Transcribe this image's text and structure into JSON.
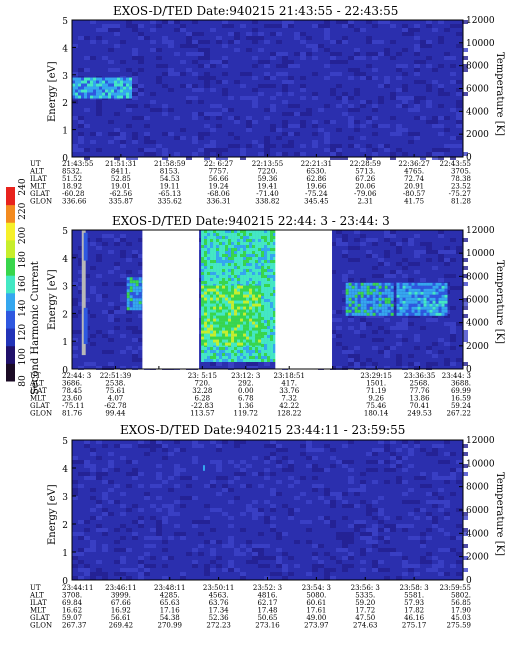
{
  "colors": {
    "panel_bg": "#2b2fae",
    "noise_dark": "#231f8f",
    "noise_light": "#3d44c9",
    "frame": "#000000",
    "colorbar": [
      "#1a0a24",
      "#20106a",
      "#2233b8",
      "#2f58e0",
      "#35a7ef",
      "#44e8c4",
      "#38d64c",
      "#c7ee2c",
      "#f6f02a",
      "#f38b1f",
      "#e8231d"
    ]
  },
  "colorbar": {
    "label": "Second Harmonic Current",
    "ticks": [
      "80",
      "100",
      "120",
      "140",
      "160",
      "180",
      "200",
      "220",
      "240"
    ]
  },
  "chart_data": [
    {
      "type": "heatmap",
      "title": "EXOS-D/TED  Date:940215  21:43:55 - 22:43:55",
      "ylabel": "Energy [eV]",
      "ylabel_right": "Temperature [K]",
      "ylim": [
        0,
        5
      ],
      "ylim_right": [
        0,
        12000
      ],
      "yticks": [
        "0",
        "1",
        "2",
        "3",
        "4",
        "5"
      ],
      "yticks_right": [
        "0",
        "2000",
        "4000",
        "6000",
        "8000",
        "10000",
        "12000"
      ],
      "grid": false,
      "data_gaps": [],
      "features": [
        {
          "kind": "enhanced_band",
          "x_from": 0.0,
          "x_to": 0.15,
          "y_from": 2.2,
          "y_to": 2.9,
          "level": 140
        }
      ],
      "ephemeris_rows": [
        {
          "label": "UT",
          "values": [
            "21:43:55",
            "21:51:31",
            "21:58:59",
            "22: 6:27",
            "22:13:55",
            "22:21:31",
            "22:28:59",
            "22:36:27",
            "22:43:55"
          ]
        },
        {
          "label": "ALT",
          "values": [
            "8532.",
            "8411.",
            "8153.",
            "7757.",
            "7220.",
            "6530.",
            "5713.",
            "4765.",
            "3705."
          ]
        },
        {
          "label": "ILAT",
          "values": [
            "51.52",
            "52.85",
            "54.53",
            "56.66",
            "59.36",
            "62.86",
            "67.26",
            "72.74",
            "78.38"
          ]
        },
        {
          "label": "MLT",
          "values": [
            "18.92",
            "19.01",
            "19.11",
            "19.24",
            "19.41",
            "19.66",
            "20.06",
            "20.91",
            "23.52"
          ]
        },
        {
          "label": "GLAT",
          "values": [
            "-60.28",
            "-62.56",
            "-65.13",
            "-68.06",
            "-71.40",
            "-75.24",
            "-79.06",
            "-80.57",
            "-75.27"
          ]
        },
        {
          "label": "GLON",
          "values": [
            "336.66",
            "335.87",
            "335.62",
            "336.31",
            "338.82",
            "345.45",
            "2.31",
            "41.75",
            "81.28"
          ]
        }
      ]
    },
    {
      "type": "heatmap",
      "title": "EXOS-D/TED   Date:940215  22:44: 3 - 23:44: 3",
      "ylabel": "Energy [eV]",
      "ylabel_right": "Temperature [K]",
      "ylim": [
        0,
        5
      ],
      "ylim_right": [
        0,
        12000
      ],
      "yticks": [
        "0",
        "1",
        "2",
        "3",
        "4",
        "5"
      ],
      "yticks_right": [
        "0",
        "2000",
        "4000",
        "6000",
        "8000",
        "10000",
        "12000"
      ],
      "grid": false,
      "data_gaps": [
        [
          0.18,
          0.325
        ],
        [
          0.52,
          0.665
        ]
      ],
      "features": [
        {
          "kind": "vertical_stripe",
          "x_from": 0.025,
          "x_to": 0.035,
          "y_from": 0.5,
          "y_to": 5.0,
          "level": 80
        },
        {
          "kind": "vertical_stripe",
          "x_from": 0.03,
          "x_to": 0.04,
          "y_from": 3.9,
          "y_to": 4.9,
          "level": 120
        },
        {
          "kind": "vertical_stripe",
          "x_from": 0.03,
          "x_to": 0.04,
          "y_from": 0.9,
          "y_to": 2.2,
          "level": 120
        },
        {
          "kind": "enhanced_band",
          "x_from": 0.14,
          "x_to": 0.18,
          "y_from": 2.2,
          "y_to": 3.3,
          "level": 150
        },
        {
          "kind": "enhanced_region",
          "x_from": 0.33,
          "x_to": 0.52,
          "y_from": 0.3,
          "y_to": 5.0,
          "level": 160
        },
        {
          "kind": "enhanced_region",
          "x_from": 0.33,
          "x_to": 0.48,
          "y_from": 0.9,
          "y_to": 3.0,
          "level": 175
        },
        {
          "kind": "enhanced_band",
          "x_from": 0.7,
          "x_to": 0.82,
          "y_from": 2.0,
          "y_to": 3.1,
          "level": 150
        },
        {
          "kind": "enhanced_band",
          "x_from": 0.83,
          "x_to": 0.96,
          "y_from": 2.0,
          "y_to": 3.1,
          "level": 145
        }
      ],
      "ephemeris_rows": [
        {
          "label": "UT",
          "values": [
            "22:44: 3",
            "22:51:39",
            "",
            "23: 5:15",
            "23:12: 3",
            "23:18:51",
            "",
            "23:29:15",
            "23:36:35",
            "23:44: 3"
          ]
        },
        {
          "label": "ALT",
          "values": [
            "3686.",
            "2538.",
            "",
            "720.",
            "292.",
            "417.",
            "",
            "1501.",
            "2568.",
            "3688."
          ]
        },
        {
          "label": "ILAT",
          "values": [
            "78.45",
            "75.61",
            "",
            "32.28",
            "0.00",
            "33.76",
            "",
            "71.19",
            "77.76",
            "69.99"
          ]
        },
        {
          "label": "MLT",
          "values": [
            "23.60",
            "4.07",
            "",
            "6.28",
            "6.78",
            "7.32",
            "",
            "9.26",
            "13.86",
            "16.59"
          ]
        },
        {
          "label": "GLAT",
          "values": [
            "-75.11",
            "-62.78",
            "",
            "-22.83",
            "1.36",
            "42.22",
            "",
            "75.46",
            "70.41",
            "59.24"
          ]
        },
        {
          "label": "GLON",
          "values": [
            "81.76",
            "99.44",
            "",
            "113.57",
            "119.72",
            "128.22",
            "",
            "180.14",
            "249.53",
            "267.22"
          ]
        }
      ]
    },
    {
      "type": "heatmap",
      "title": "EXOS-D/TED  Date:940215  23:44:11 - 23:59:55",
      "ylabel": "Energy [eV]",
      "ylabel_right": "Temperature [K]",
      "ylim": [
        0,
        5
      ],
      "ylim_right": [
        0,
        12000
      ],
      "yticks": [
        "0",
        "1",
        "2",
        "3",
        "4",
        "5"
      ],
      "yticks_right": [
        "0",
        "2000",
        "4000",
        "6000",
        "8000",
        "10000",
        "12000"
      ],
      "grid": false,
      "data_gaps": [],
      "features": [
        {
          "kind": "speck",
          "x_from": 0.335,
          "x_to": 0.34,
          "y_from": 3.9,
          "y_to": 4.1,
          "level": 150
        }
      ],
      "ephemeris_rows": [
        {
          "label": "UT",
          "values": [
            "23:44:11",
            "23:46:11",
            "23:48:11",
            "23:50:11",
            "23:52: 3",
            "23:54: 3",
            "23:56: 3",
            "23:58: 3",
            "23:59:55"
          ]
        },
        {
          "label": "ALT",
          "values": [
            "3708.",
            "3999.",
            "4285.",
            "4563.",
            "4816.",
            "5080.",
            "5335.",
            "5581.",
            "5802."
          ]
        },
        {
          "label": "ILAT",
          "values": [
            "69.84",
            "67.66",
            "65.63",
            "63.76",
            "62.17",
            "60.61",
            "59.20",
            "57.93",
            "56.85"
          ]
        },
        {
          "label": "MLT",
          "values": [
            "16.62",
            "16.92",
            "17.16",
            "17.34",
            "17.48",
            "17.61",
            "17.72",
            "17.82",
            "17.90"
          ]
        },
        {
          "label": "GLAT",
          "values": [
            "59.07",
            "56.61",
            "54.38",
            "52.36",
            "50.65",
            "49.00",
            "47.50",
            "46.16",
            "45.03"
          ]
        },
        {
          "label": "GLON",
          "values": [
            "267.37",
            "269.42",
            "270.99",
            "272.23",
            "273.16",
            "273.97",
            "274.63",
            "275.17",
            "275.59"
          ]
        }
      ]
    }
  ]
}
